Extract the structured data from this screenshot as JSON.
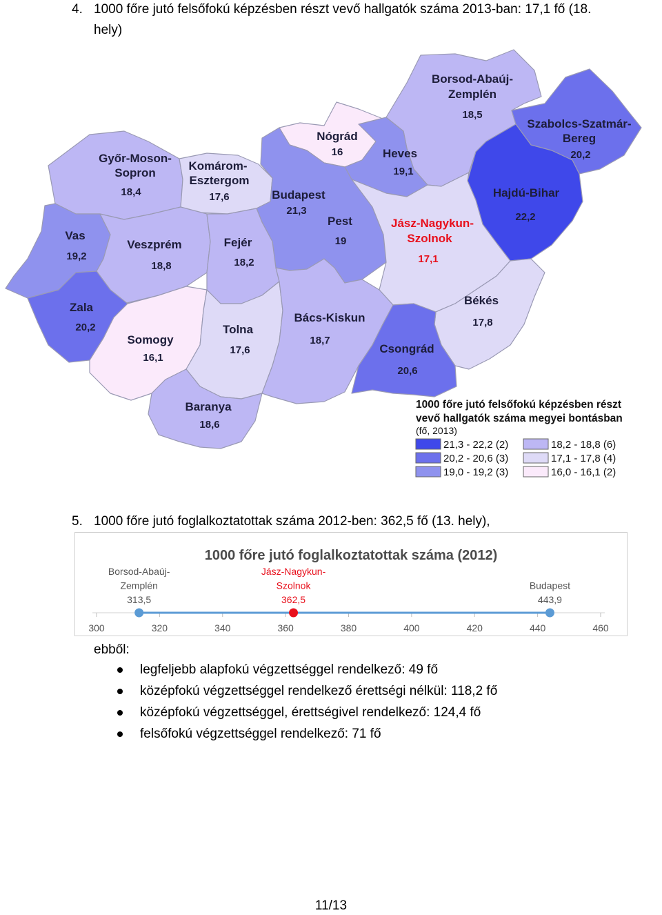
{
  "section4": {
    "number": "4.",
    "line1": "1000 főre jutó felsőfokú képzésben részt vevő hallgatók száma 2013-ban: 17,1 fő (18.",
    "line2": "hely)"
  },
  "map": {
    "counties": [
      {
        "id": "borsod",
        "name": [
          "Borsod-Abaúj-",
          "Zemplén"
        ],
        "value": "18,5",
        "color": "#bdb7f4"
      },
      {
        "id": "szabolcs",
        "name": [
          "Szabolcs-Szatmár-",
          "Bereg"
        ],
        "value": "20,2",
        "color": "#6c70ec"
      },
      {
        "id": "nograd",
        "name": [
          "Nógrád"
        ],
        "value": "16",
        "color": "#fbeafb"
      },
      {
        "id": "heves",
        "name": [
          "Heves"
        ],
        "value": "19,1",
        "color": "#8f92ee"
      },
      {
        "id": "gyor",
        "name": [
          "Győr-Moson-",
          "Sopron"
        ],
        "value": "18,4",
        "color": "#bdb7f4"
      },
      {
        "id": "komarom",
        "name": [
          "Komárom-",
          "Esztergom"
        ],
        "value": "17,6",
        "color": "#dedaf7"
      },
      {
        "id": "budapest",
        "name": [
          "Budapest"
        ],
        "value": "21,3",
        "color": "#3f48ea"
      },
      {
        "id": "pest",
        "name": [
          "Pest"
        ],
        "value": "19",
        "color": "#8f92ee"
      },
      {
        "id": "hajdu",
        "name": [
          "Hajdú-Bihar"
        ],
        "value": "22,2",
        "color": "#3f48ea"
      },
      {
        "id": "vas",
        "name": [
          "Vas"
        ],
        "value": "19,2",
        "color": "#8f92ee"
      },
      {
        "id": "veszprem",
        "name": [
          "Veszprém"
        ],
        "value": "18,8",
        "color": "#bdb7f4"
      },
      {
        "id": "fejer",
        "name": [
          "Fejér"
        ],
        "value": "18,2",
        "color": "#bdb7f4"
      },
      {
        "id": "jasz",
        "name": [
          "Jász-Nagykun-",
          "Szolnok"
        ],
        "value": "17,1",
        "color": "#dedaf7",
        "highlight": true
      },
      {
        "id": "zala",
        "name": [
          "Zala"
        ],
        "value": "20,2",
        "color": "#6c70ec"
      },
      {
        "id": "somogy",
        "name": [
          "Somogy"
        ],
        "value": "16,1",
        "color": "#fbeafb"
      },
      {
        "id": "tolna",
        "name": [
          "Tolna"
        ],
        "value": "17,6",
        "color": "#dedaf7"
      },
      {
        "id": "bacs",
        "name": [
          "Bács-Kiskun"
        ],
        "value": "18,7",
        "color": "#bdb7f4"
      },
      {
        "id": "bekes",
        "name": [
          "Békés"
        ],
        "value": "17,8",
        "color": "#dedaf7"
      },
      {
        "id": "csongrad",
        "name": [
          "Csongrád"
        ],
        "value": "20,6",
        "color": "#6c70ec"
      },
      {
        "id": "baranya",
        "name": [
          "Baranya"
        ],
        "value": "18,6",
        "color": "#bdb7f4"
      }
    ],
    "legend": {
      "title_line1": "1000 főre jutó felsőfokú képzésben részt",
      "title_line2": "vevő hallgatók száma megyei bontásban",
      "subtitle": "(fő, 2013)",
      "items": [
        {
          "label": "21,3 - 22,2 (2)",
          "color": "#3f48ea"
        },
        {
          "label": "20,2 - 20,6 (3)",
          "color": "#6c70ec"
        },
        {
          "label": "19,0 - 19,2 (3)",
          "color": "#8f92ee"
        },
        {
          "label": "18,2 - 18,8 (6)",
          "color": "#bdb7f4"
        },
        {
          "label": "17,1 - 17,8 (4)",
          "color": "#dedaf7"
        },
        {
          "label": "16,0 - 16,1 (2)",
          "color": "#fbeafb"
        }
      ]
    }
  },
  "section5": {
    "number": "5.",
    "text": "1000 főre jutó foglalkoztatottak száma 2012-ben: 362,5 fő (13. hely),"
  },
  "chart_data": {
    "type": "scatter",
    "title": "1000 főre jutó foglalkoztatottak száma (2012)",
    "xlim": [
      300,
      460
    ],
    "ticks": [
      "300",
      "320",
      "340",
      "360",
      "380",
      "400",
      "420",
      "440",
      "460"
    ],
    "points": [
      {
        "label": [
          "Borsod-Abaúj-",
          "Zemplén",
          "313,5"
        ],
        "x": 313.5,
        "color": "#5b9bd5",
        "highlight": false
      },
      {
        "label": [
          "Jász-Nagykun-",
          "Szolnok",
          "362,5"
        ],
        "x": 362.5,
        "color": "#e8101c",
        "highlight": true
      },
      {
        "label": [
          "Budapest",
          "443,9"
        ],
        "x": 443.9,
        "color": "#5b9bd5",
        "highlight": false
      }
    ],
    "line_color": "#5b9bd5"
  },
  "breakdown": {
    "intro": "ebből:",
    "items": [
      "legfeljebb alapfokú végzettséggel rendelkező: 49 fő",
      "középfokú végzettséggel rendelkező érettségi nélkül: 118,2 fő",
      "középfokú végzettséggel, érettségivel rendelkező: 124,4 fő",
      "felsőfokú végzettséggel rendelkező: 71 fő"
    ]
  },
  "page": {
    "number": "11/13"
  }
}
